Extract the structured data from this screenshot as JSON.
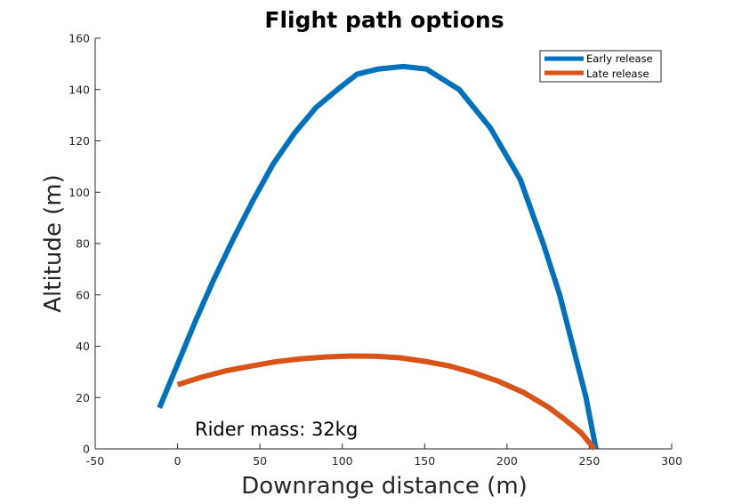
{
  "chart_data": {
    "type": "line",
    "title": "Flight path options",
    "xlabel": "Downrange distance (m)",
    "ylabel": "Altitude (m)",
    "xlim": [
      -50,
      300
    ],
    "ylim": [
      0,
      160
    ],
    "xticks": [
      "-50",
      "0",
      "50",
      "100",
      "150",
      "200",
      "250",
      "300"
    ],
    "yticks": [
      "0",
      "20",
      "40",
      "60",
      "80",
      "100",
      "120",
      "140",
      "160"
    ],
    "grid": false,
    "legend_position": "top-right",
    "annotation": "Rider mass: 32kg",
    "series": [
      {
        "name": "Early release",
        "color": "#0072BD",
        "x": [
          -11,
          0,
          11,
          22,
          34,
          46,
          58,
          71,
          84,
          97,
          109,
          122,
          137,
          151,
          171,
          190,
          208,
          222,
          232,
          240,
          248,
          254
        ],
        "y": [
          16,
          33,
          50,
          66,
          82,
          97,
          111,
          123,
          133,
          140,
          146,
          148,
          149,
          148,
          140,
          125,
          105,
          80,
          60,
          40,
          20,
          0
        ]
      },
      {
        "name": "Late release",
        "color": "#D95319",
        "x": [
          0,
          15,
          30,
          45,
          60,
          75,
          90,
          105,
          120,
          135,
          150,
          165,
          180,
          195,
          210,
          225,
          235,
          245,
          253
        ],
        "y": [
          25,
          28,
          30.5,
          32.3,
          34,
          35.1,
          35.8,
          36.2,
          36.1,
          35.5,
          34.1,
          32.3,
          29.6,
          26.3,
          22,
          16.3,
          11.5,
          6.3,
          0
        ]
      }
    ]
  }
}
